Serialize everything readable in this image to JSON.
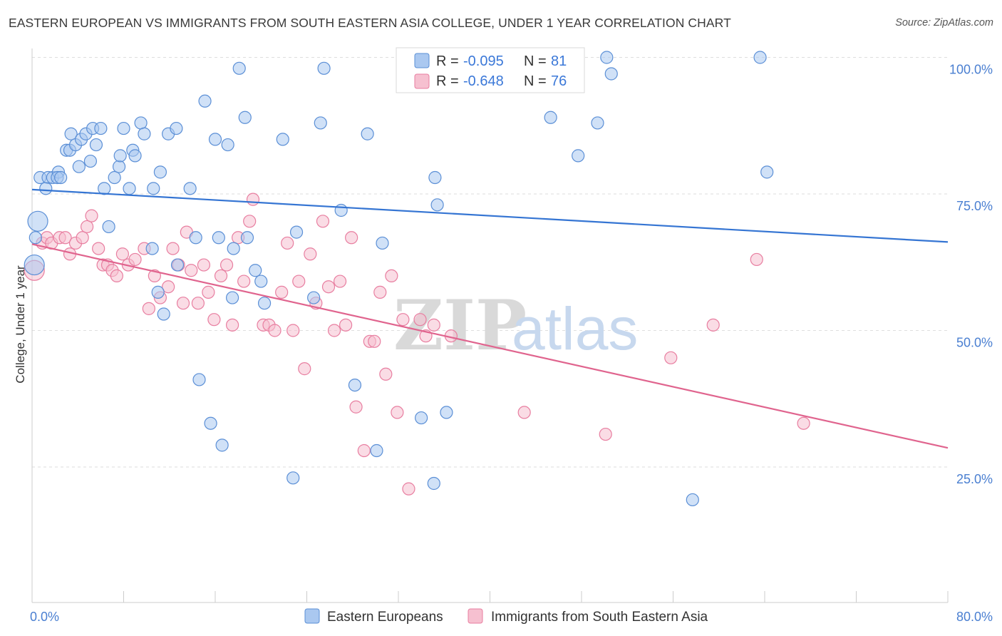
{
  "title": "EASTERN EUROPEAN VS IMMIGRANTS FROM SOUTH EASTERN ASIA COLLEGE, UNDER 1 YEAR CORRELATION CHART",
  "source": "Source: ZipAtlas.com",
  "watermark": {
    "zip": "ZIP",
    "atlas": "atlas"
  },
  "colors": {
    "blue_fill": "#aac8f0",
    "blue_stroke": "#5b8fd6",
    "blue_line": "#3575d3",
    "pink_fill": "#f6c0d0",
    "pink_stroke": "#e87ea0",
    "pink_line": "#e0648e",
    "grid": "#dedede",
    "axis": "#cccccc"
  },
  "stats": {
    "r_label": "R =",
    "n_label": "N =",
    "blue": {
      "r": "-0.095",
      "n": "81"
    },
    "pink": {
      "r": "-0.648",
      "n": "76"
    }
  },
  "chart_data": {
    "type": "scatter",
    "title": "EASTERN EUROPEAN VS IMMIGRANTS FROM SOUTH EASTERN ASIA COLLEGE, UNDER 1 YEAR CORRELATION CHART",
    "xlabel": "",
    "ylabel": "College, Under 1 year",
    "xlim": [
      0,
      80
    ],
    "ylim": [
      0,
      105
    ],
    "x_tick_labels": [
      "0.0%",
      "80.0%"
    ],
    "y_tick_values": [
      25,
      50,
      75,
      100
    ],
    "y_tick_labels": [
      "25.0%",
      "50.0%",
      "75.0%",
      "100.0%"
    ],
    "legend_position": "bottom-center",
    "series": [
      {
        "name": "Eastern Europeans",
        "color": "blue",
        "trend": {
          "x": [
            0,
            80
          ],
          "y": [
            75.8,
            66.2
          ]
        },
        "points": [
          [
            0.7,
            78
          ],
          [
            1.4,
            78
          ],
          [
            1.8,
            78
          ],
          [
            1.2,
            76
          ],
          [
            2.3,
            79
          ],
          [
            2.2,
            78
          ],
          [
            2.5,
            78
          ],
          [
            3.0,
            83
          ],
          [
            3.3,
            83
          ],
          [
            3.4,
            86
          ],
          [
            3.8,
            84
          ],
          [
            4.1,
            80
          ],
          [
            4.3,
            85
          ],
          [
            4.7,
            86
          ],
          [
            5.1,
            81
          ],
          [
            5.3,
            87
          ],
          [
            5.6,
            84
          ],
          [
            6.0,
            87
          ],
          [
            6.3,
            76
          ],
          [
            6.7,
            69
          ],
          [
            7.2,
            78
          ],
          [
            7.6,
            80
          ],
          [
            7.7,
            82
          ],
          [
            8.0,
            87
          ],
          [
            8.5,
            76
          ],
          [
            8.8,
            83
          ],
          [
            9.0,
            82
          ],
          [
            9.5,
            88
          ],
          [
            9.8,
            86
          ],
          [
            10.6,
            76
          ],
          [
            11.2,
            79
          ],
          [
            11.9,
            86
          ],
          [
            12.6,
            87
          ],
          [
            13.8,
            76
          ],
          [
            14.3,
            67
          ],
          [
            15.1,
            92
          ],
          [
            16.0,
            85
          ],
          [
            16.3,
            67
          ],
          [
            17.1,
            84
          ],
          [
            17.6,
            65
          ],
          [
            18.1,
            98
          ],
          [
            18.6,
            89
          ],
          [
            18.8,
            67
          ],
          [
            19.5,
            61
          ],
          [
            20.0,
            59
          ],
          [
            20.3,
            55
          ],
          [
            21.9,
            85
          ],
          [
            23.1,
            68
          ],
          [
            25.2,
            88
          ],
          [
            25.5,
            98
          ],
          [
            27.0,
            72
          ],
          [
            29.3,
            86
          ],
          [
            30.6,
            66
          ],
          [
            35.2,
            78
          ],
          [
            35.4,
            73
          ],
          [
            45.3,
            89
          ],
          [
            47.7,
            82
          ],
          [
            49.4,
            88
          ],
          [
            50.2,
            100
          ],
          [
            50.6,
            97
          ],
          [
            63.6,
            100
          ],
          [
            64.2,
            79
          ],
          [
            0.5,
            70
          ],
          [
            0.3,
            67
          ],
          [
            0.2,
            62
          ],
          [
            10.5,
            65
          ],
          [
            11.0,
            57
          ],
          [
            11.5,
            53
          ],
          [
            12.7,
            62
          ],
          [
            14.6,
            41
          ],
          [
            15.6,
            33
          ],
          [
            16.6,
            29
          ],
          [
            22.8,
            23
          ],
          [
            28.2,
            40
          ],
          [
            30.1,
            28
          ],
          [
            34.0,
            34
          ],
          [
            35.1,
            22
          ],
          [
            36.2,
            35
          ],
          [
            57.7,
            19
          ],
          [
            17.5,
            56
          ],
          [
            24.6,
            56
          ]
        ]
      },
      {
        "name": "Immigrants from South Eastern Asia",
        "color": "pink",
        "trend": {
          "x": [
            0,
            80
          ],
          "y": [
            65.8,
            28.5
          ]
        },
        "points": [
          [
            0.2,
            61
          ],
          [
            0.9,
            66
          ],
          [
            1.3,
            67
          ],
          [
            1.7,
            66
          ],
          [
            2.4,
            67
          ],
          [
            2.9,
            67
          ],
          [
            3.3,
            64
          ],
          [
            3.8,
            66
          ],
          [
            4.4,
            67
          ],
          [
            4.8,
            69
          ],
          [
            5.2,
            71
          ],
          [
            5.8,
            65
          ],
          [
            6.2,
            62
          ],
          [
            6.6,
            62
          ],
          [
            7.0,
            61
          ],
          [
            7.4,
            60
          ],
          [
            7.9,
            64
          ],
          [
            8.4,
            62
          ],
          [
            9.0,
            63
          ],
          [
            9.8,
            65
          ],
          [
            10.2,
            54
          ],
          [
            10.7,
            60
          ],
          [
            11.2,
            56
          ],
          [
            11.9,
            58
          ],
          [
            12.3,
            65
          ],
          [
            12.8,
            62
          ],
          [
            13.2,
            55
          ],
          [
            13.5,
            68
          ],
          [
            13.9,
            61
          ],
          [
            14.5,
            55
          ],
          [
            15.0,
            62
          ],
          [
            15.4,
            57
          ],
          [
            15.9,
            52
          ],
          [
            16.5,
            60
          ],
          [
            17.0,
            62
          ],
          [
            17.5,
            51
          ],
          [
            18.0,
            67
          ],
          [
            18.5,
            59
          ],
          [
            19.0,
            70
          ],
          [
            19.3,
            74
          ],
          [
            20.2,
            51
          ],
          [
            20.7,
            51
          ],
          [
            21.2,
            50
          ],
          [
            21.8,
            57
          ],
          [
            22.3,
            66
          ],
          [
            22.8,
            50
          ],
          [
            23.3,
            59
          ],
          [
            23.8,
            43
          ],
          [
            24.3,
            64
          ],
          [
            24.8,
            55
          ],
          [
            25.4,
            70
          ],
          [
            25.9,
            58
          ],
          [
            26.4,
            50
          ],
          [
            26.9,
            59
          ],
          [
            27.4,
            51
          ],
          [
            27.9,
            67
          ],
          [
            28.3,
            36
          ],
          [
            29.0,
            28
          ],
          [
            29.5,
            48
          ],
          [
            29.9,
            48
          ],
          [
            30.4,
            57
          ],
          [
            30.9,
            42
          ],
          [
            31.4,
            60
          ],
          [
            31.9,
            35
          ],
          [
            32.4,
            52
          ],
          [
            32.9,
            21
          ],
          [
            33.9,
            52
          ],
          [
            34.4,
            49
          ],
          [
            35.1,
            51
          ],
          [
            36.6,
            49
          ],
          [
            43.0,
            35
          ],
          [
            50.1,
            31
          ],
          [
            55.8,
            45
          ],
          [
            59.5,
            51
          ],
          [
            63.3,
            63
          ],
          [
            67.4,
            33
          ]
        ]
      }
    ]
  },
  "legend": {
    "blue_label": "Eastern Europeans",
    "pink_label": "Immigrants from South Eastern Asia"
  }
}
